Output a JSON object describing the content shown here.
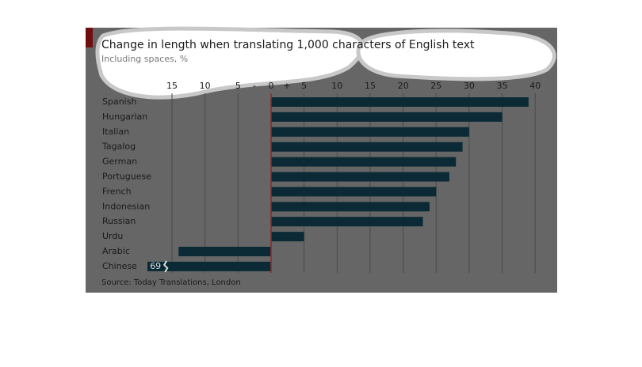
{
  "chart_data": {
    "type": "bar",
    "orientation": "horizontal",
    "title": "Change in length when translating 1,000 characters of English text",
    "subtitle": "Including spaces, %",
    "source": "Source: Today Translations, London",
    "minus_sign": "-",
    "plus_sign": "+",
    "categories": [
      "Spanish",
      "Hungarian",
      "Italian",
      "Tagalog",
      "German",
      "Portuguese",
      "French",
      "Indonesian",
      "Russian",
      "Urdu",
      "Arabic",
      "Chinese"
    ],
    "values": [
      39,
      35,
      30,
      29,
      28,
      27,
      25,
      24,
      23,
      5,
      -14,
      -69
    ],
    "value_labels": [
      null,
      null,
      null,
      null,
      null,
      null,
      null,
      null,
      null,
      null,
      null,
      "69"
    ],
    "color": "#0b2a35",
    "xlim": [
      -18.7,
      40.5
    ],
    "xticks": [
      {
        "value": -15,
        "label": "15"
      },
      {
        "value": -10,
        "label": "10"
      },
      {
        "value": -5,
        "label": "5"
      },
      0,
      5,
      10,
      15,
      20,
      25,
      30,
      35,
      40
    ],
    "grid": true
  }
}
